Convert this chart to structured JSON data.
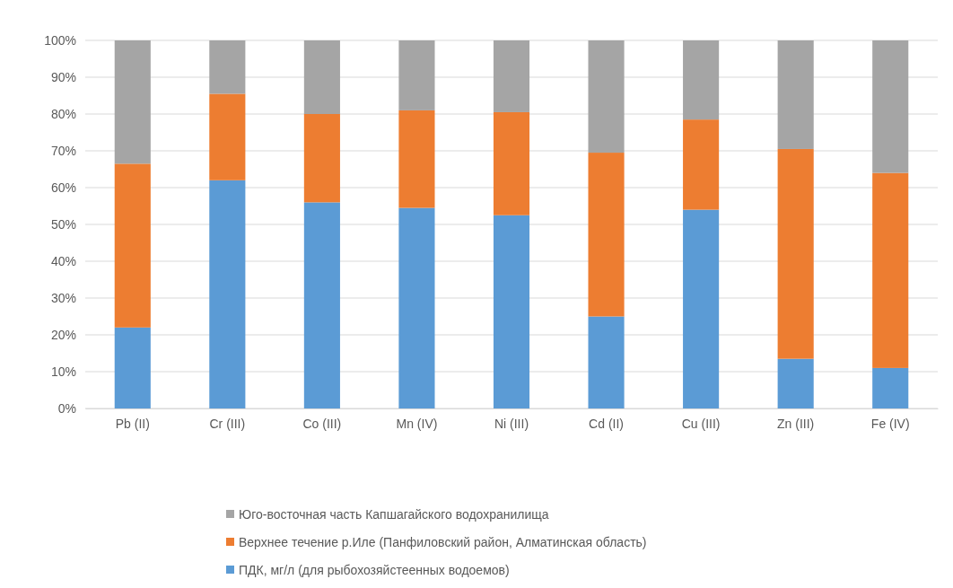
{
  "chart_data": {
    "type": "bar",
    "stacked": true,
    "categories": [
      "Pb (II)",
      "Cr (III)",
      "Co (III)",
      "Mn (IV)",
      "Ni (III)",
      "Cd (II)",
      "Cu (III)",
      "Zn (III)",
      "Fe (IV)"
    ],
    "series": [
      {
        "name": "ПДК, мг/л (для рыбохозяйстеенных водоемов)",
        "color": "#5b9bd5",
        "values": [
          22,
          62,
          56,
          54.5,
          52.5,
          25,
          54,
          13.5,
          11
        ]
      },
      {
        "name": "Верхнее течение  р.Иле (Панфиловский район, Алматинская область)",
        "color": "#ed7d31",
        "values": [
          44.5,
          23.5,
          24,
          26.5,
          28,
          44.5,
          24.5,
          57,
          53
        ]
      },
      {
        "name": "Юго-восточная часть Капшагайского водохранилища",
        "color": "#a5a5a5",
        "values": [
          33.5,
          14.5,
          20,
          19,
          19.5,
          30.5,
          21.5,
          29.5,
          36
        ]
      }
    ],
    "ylim": [
      0,
      100
    ],
    "yticks": [
      {
        "value": 0,
        "label": "0%"
      },
      {
        "value": 10,
        "label": "10%"
      },
      {
        "value": 20,
        "label": "20%"
      },
      {
        "value": 30,
        "label": "30%"
      },
      {
        "value": 40,
        "label": "40%"
      },
      {
        "value": 50,
        "label": "50%"
      },
      {
        "value": 60,
        "label": "60%"
      },
      {
        "value": 70,
        "label": "70%"
      },
      {
        "value": 80,
        "label": "80%"
      },
      {
        "value": 90,
        "label": "90%"
      },
      {
        "value": 100,
        "label": "100%"
      }
    ],
    "grid": "y",
    "legend": "bottom"
  }
}
